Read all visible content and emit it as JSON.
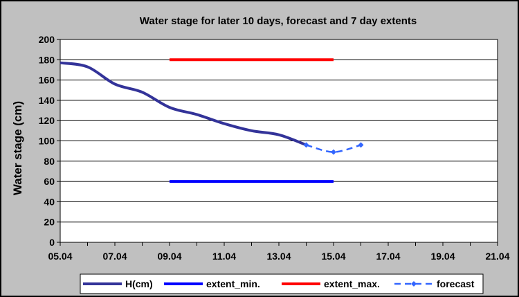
{
  "chart_data": {
    "type": "line",
    "title": "Water stage for later 10 days, forecast and 7 day extents",
    "xlabel": "",
    "ylabel": "Water stage (cm)",
    "ylim": [
      0,
      200
    ],
    "yticks": [
      0,
      20,
      40,
      60,
      80,
      100,
      120,
      140,
      160,
      180,
      200
    ],
    "xlim": [
      "05.04",
      "21.04"
    ],
    "xticks": [
      "05.04",
      "07.04",
      "09.04",
      "11.04",
      "13.04",
      "15.04",
      "17.04",
      "19.04",
      "21.04"
    ],
    "grid": "horizontal",
    "legend_position": "bottom",
    "background": "#c0c0c0",
    "plot_background": "#ffffff",
    "series": [
      {
        "name": "H(cm)",
        "color": "#333399",
        "style": "solid",
        "points": [
          {
            "x": "05.04",
            "y": 177
          },
          {
            "x": "06.04",
            "y": 173
          },
          {
            "x": "07.04",
            "y": 156
          },
          {
            "x": "08.04",
            "y": 148
          },
          {
            "x": "09.04",
            "y": 133
          },
          {
            "x": "10.04",
            "y": 126
          },
          {
            "x": "11.04",
            "y": 117
          },
          {
            "x": "12.04",
            "y": 110
          },
          {
            "x": "13.04",
            "y": 106
          },
          {
            "x": "14.04",
            "y": 96
          }
        ]
      },
      {
        "name": "extent_min.",
        "color": "#0000ff",
        "style": "solid",
        "points": [
          {
            "x": "09.04",
            "y": 60
          },
          {
            "x": "15.04",
            "y": 60
          }
        ]
      },
      {
        "name": "extent_max.",
        "color": "#ff0000",
        "style": "solid",
        "points": [
          {
            "x": "09.04",
            "y": 180
          },
          {
            "x": "15.04",
            "y": 180
          }
        ]
      },
      {
        "name": "forecast",
        "color": "#3366ff",
        "style": "dashed",
        "marker": "diamond",
        "points": [
          {
            "x": "14.04",
            "y": 96
          },
          {
            "x": "15.04",
            "y": 89
          },
          {
            "x": "16.04",
            "y": 96
          }
        ]
      }
    ]
  }
}
